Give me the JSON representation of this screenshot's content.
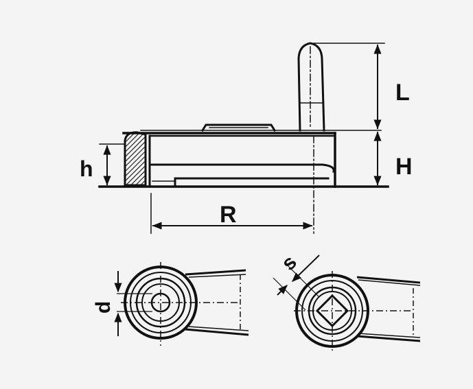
{
  "figure": {
    "colors": {
      "ink": "#111111",
      "paper": "#f4f4f4"
    },
    "side_view": {
      "labels": {
        "handle_length": "L",
        "wheel_height": "H",
        "hub_height": "h",
        "radius": "R"
      }
    },
    "hub_round_bore_view": {
      "labels": {
        "bore_diameter": "d"
      }
    },
    "hub_square_bore_view": {
      "labels": {
        "square_size": "s"
      }
    }
  }
}
